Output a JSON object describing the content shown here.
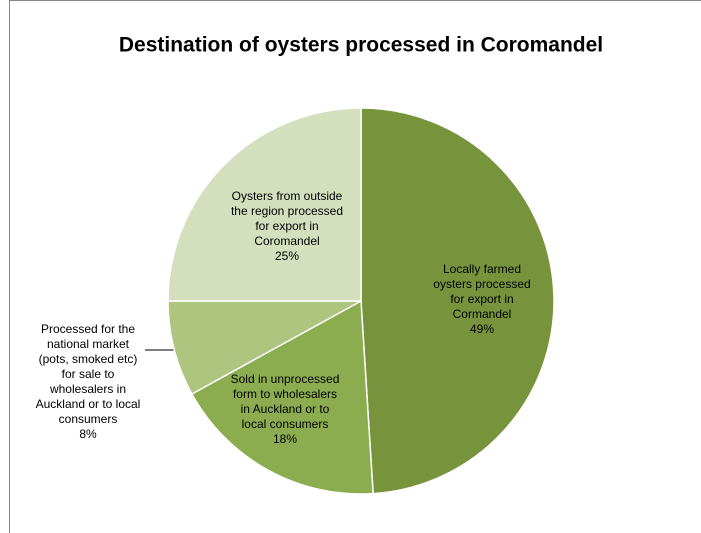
{
  "chart_data": {
    "type": "pie",
    "title": "Destination of oysters processed in Coromandel",
    "categories": [
      "Locally farmed oysters processed for export in Cormandel",
      "Sold in unprocessed form to wholesalers in Auckland or to local consumers",
      "Processed for the national market (pots, smoked etc) for sale to wholesalers in Auckland or to local consumers",
      "Oysters from outside the region processed for export in Coromandel"
    ],
    "values": [
      49,
      18,
      8,
      25
    ],
    "value_labels": [
      "49%",
      "18%",
      "8%",
      "25%"
    ],
    "colors": [
      "#77933c",
      "#8cad4f",
      "#adc57f",
      "#d3dfbd"
    ]
  }
}
